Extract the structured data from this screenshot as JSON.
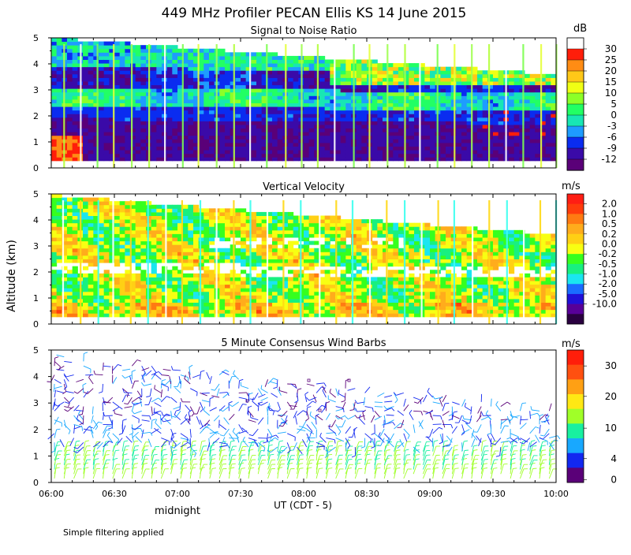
{
  "title": "449 MHz Profiler PECAN Ellis KS 14 June 2015",
  "y_axis_label": "Altitude (km)",
  "x_axis": {
    "ticks": [
      "06:00",
      "06:30",
      "07:00",
      "07:30",
      "08:00",
      "08:30",
      "09:00",
      "09:30",
      "10:00"
    ],
    "start_minute": 360,
    "end_minute": 600,
    "label": "UT (CDT - 5)",
    "sublabel": "midnight"
  },
  "footnote": "Simple filtering applied",
  "colors": {
    "snr": [
      "#5a0078",
      "#3a0aa8",
      "#0a2cf0",
      "#1e9cff",
      "#18e6b4",
      "#22ff64",
      "#8cff28",
      "#f0ff14",
      "#ffc818",
      "#ff8c14",
      "#ff1e0a",
      "#ffffff"
    ],
    "vv": [
      "#2a0040",
      "#580098",
      "#2010d8",
      "#1a6cff",
      "#1ae6f0",
      "#18f080",
      "#36ff1e",
      "#f8ff12",
      "#ffd014",
      "#ffac1c",
      "#ff7a12",
      "#ff3c0c",
      "#ff1e14"
    ],
    "wind": [
      "#5a0078",
      "#1228f0",
      "#18a8ff",
      "#18f0a0",
      "#a0ff28",
      "#ffe814",
      "#ffa014",
      "#ff5010",
      "#ff1e0a"
    ]
  },
  "chart_data": [
    {
      "type": "heatmap",
      "name": "snr",
      "title": "Signal to Noise Ratio",
      "unit": "dB",
      "ylim": [
        0,
        5
      ],
      "yticks": [
        "0",
        "1",
        "2",
        "3",
        "4",
        "5"
      ],
      "colorbar_labels": [
        "30",
        "25",
        "20",
        "15",
        "10",
        "5",
        "0",
        "-3",
        "-6",
        "-9",
        "-12"
      ]
    },
    {
      "type": "heatmap",
      "name": "vertical_velocity",
      "title": "Vertical Velocity",
      "unit": "m/s",
      "ylim": [
        0,
        5
      ],
      "yticks": [
        "0",
        "1",
        "2",
        "3",
        "4",
        "5"
      ],
      "colorbar_labels": [
        "2.0",
        "1.0",
        "0.5",
        "0.2",
        "0.0",
        "-0.2",
        "-0.5",
        "-1.0",
        "-2.0",
        "-5.0",
        "-10.0"
      ]
    },
    {
      "type": "scatter",
      "name": "wind_barbs",
      "title": "5 Minute Consensus Wind Barbs",
      "unit": "m/s",
      "ylim": [
        0,
        5
      ],
      "yticks": [
        "0",
        "1",
        "2",
        "3",
        "4",
        "5"
      ],
      "colorbar_labels": [
        "30",
        "20",
        "10",
        "4",
        "0"
      ]
    }
  ]
}
